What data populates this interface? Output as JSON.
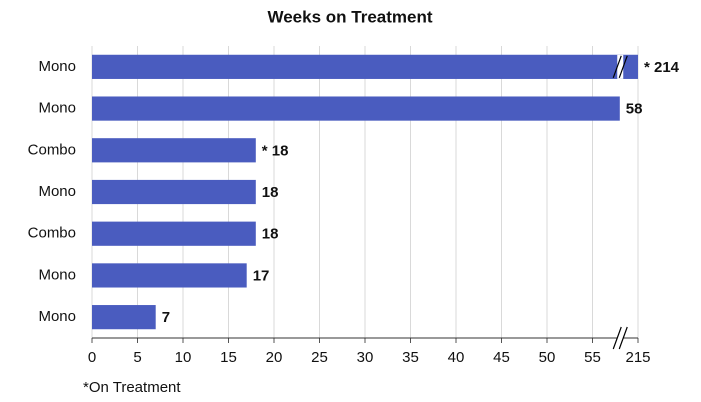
{
  "chart_data": {
    "type": "barh",
    "title": "Weeks on Treatment",
    "categories": [
      "Mono",
      "Mono",
      "Combo",
      "Mono",
      "Combo",
      "Mono",
      "Mono"
    ],
    "values": [
      214,
      58,
      18,
      18,
      18,
      17,
      7
    ],
    "value_labels": [
      "* 214",
      "58",
      "* 18",
      "18",
      "18",
      "17",
      "7"
    ],
    "color": "#4a5cbf",
    "xlim": [
      0,
      215
    ],
    "xticks": [
      0,
      5,
      10,
      15,
      20,
      25,
      30,
      35,
      40,
      45,
      50,
      55,
      215
    ],
    "axis_break": true,
    "grid": true,
    "footnote": "*On Treatment"
  }
}
